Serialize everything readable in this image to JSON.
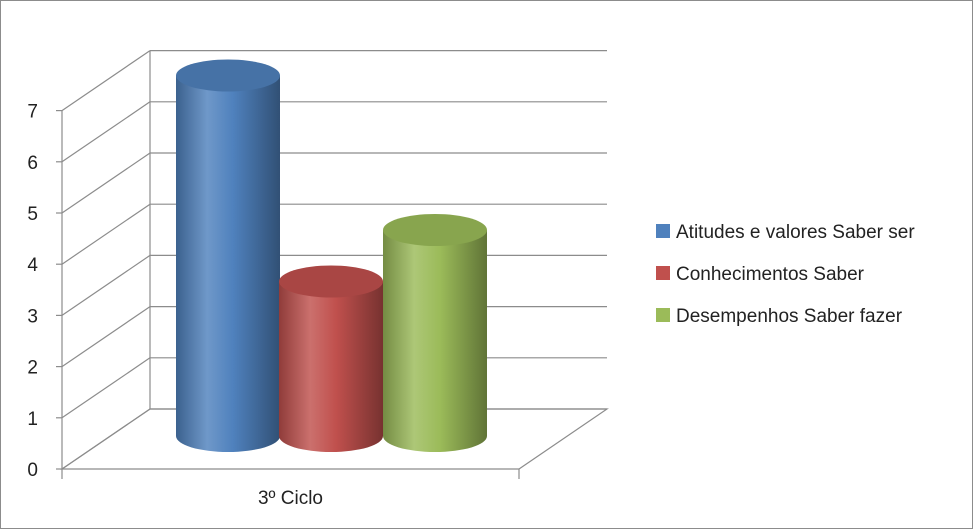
{
  "chart_data": {
    "type": "bar",
    "style": "3d-cylinder",
    "title": "",
    "xlabel": "",
    "ylabel": "",
    "categories": [
      "3º Ciclo"
    ],
    "series": [
      {
        "name": "Atitudes e valores Saber ser",
        "values": [
          7
        ],
        "color": "#4f81bd"
      },
      {
        "name": "Conhecimentos Saber",
        "values": [
          3
        ],
        "color": "#c0504d"
      },
      {
        "name": "Desempenhos Saber fazer",
        "values": [
          4
        ],
        "color": "#9bbb59"
      }
    ],
    "ylim": [
      0,
      7
    ],
    "yticks": [
      "0",
      "1",
      "2",
      "3",
      "4",
      "5",
      "6",
      "7"
    ],
    "grid": true,
    "legend_position": "right"
  }
}
